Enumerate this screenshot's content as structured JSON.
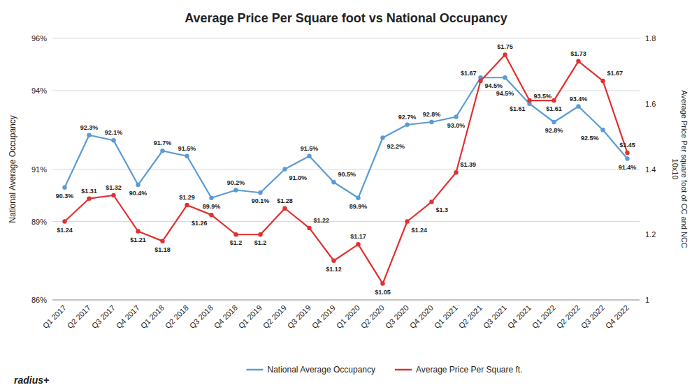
{
  "chart_data": {
    "type": "line",
    "title": "Average Price Per Square foot vs National Occupancy",
    "categories": [
      "Q1 2017",
      "Q2 2017",
      "Q3 2017",
      "Q4 2017",
      "Q1 2018",
      "Q2 2018",
      "Q3 2018",
      "Q4 2018",
      "Q1 2019",
      "Q2 2019",
      "Q3 2019",
      "Q4 2019",
      "Q1 2020",
      "Q2 2020",
      "Q3 2020",
      "Q4 2020",
      "Q1 2021",
      "Q2 2021",
      "Q3 2021",
      "Q4 2021",
      "Q1 2022",
      "Q2 2022",
      "Q3 2022",
      "Q4 2022"
    ],
    "series": [
      {
        "name": "National Average Occupancy",
        "color": "#5b9bd5",
        "marker": "circle",
        "values": [
          90.3,
          92.3,
          92.1,
          90.4,
          91.7,
          91.5,
          89.9,
          90.2,
          90.1,
          91.0,
          91.5,
          90.5,
          89.9,
          92.2,
          92.7,
          92.8,
          93.0,
          94.5,
          94.5,
          93.5,
          92.8,
          93.4,
          92.5,
          91.4
        ],
        "value_labels": [
          "90.3%",
          "92.3%",
          "92.1%",
          "90.4%",
          "91.7%",
          "91.5%",
          "89.9%",
          "90.2%",
          "90.1%",
          "91.0%",
          "91.5%",
          "90.5%",
          "89.9%",
          "92.2%",
          "92.7%",
          "92.8%",
          "93.0%",
          "94.5%",
          "94.5%",
          "93.5%",
          "92.8%",
          "93.4%",
          "92.5%",
          "91.4%"
        ]
      },
      {
        "name": "Average Price Per Square ft.",
        "color": "#e03030",
        "marker": "circle",
        "axis": "y2",
        "values": [
          1.24,
          1.31,
          1.32,
          1.21,
          1.18,
          1.29,
          1.26,
          1.2,
          1.2,
          1.28,
          1.22,
          1.12,
          1.17,
          1.05,
          1.24,
          1.3,
          1.39,
          1.67,
          1.75,
          1.61,
          1.61,
          1.73,
          1.67,
          1.45
        ],
        "value_labels": [
          "$1.24",
          "$1.31",
          "$1.32",
          "$1.21",
          "$1.18",
          "$1.29",
          "$1.26",
          "$1.2",
          "$1.2",
          "$1.28",
          "$1.22",
          "$1.12",
          "$1.17",
          "$1.05",
          "$1.24",
          "$1.3",
          "$1.39",
          "$1.67",
          "$1.75",
          "$1.61",
          "$1.61",
          "$1.73",
          "$1.67",
          "$1.45"
        ]
      }
    ],
    "y_label": "National Average Occupancy",
    "y2_label": "Average Price Per square foot of CC and NCC\n10x10",
    "ylim": [
      86,
      96
    ],
    "yticks": [
      {
        "value": 86,
        "label": "86%"
      },
      {
        "value": 89,
        "label": "89%"
      },
      {
        "value": 91,
        "label": "91%"
      },
      {
        "value": 94,
        "label": "94%"
      },
      {
        "value": 96,
        "label": "96%"
      }
    ],
    "y2lim": [
      1,
      1.8
    ],
    "y2ticks": [
      1,
      1.2,
      1.4,
      1.6,
      1.8
    ],
    "grid": true,
    "data_labels": true,
    "legend": "bottom",
    "annotations": [
      "radius+"
    ]
  }
}
